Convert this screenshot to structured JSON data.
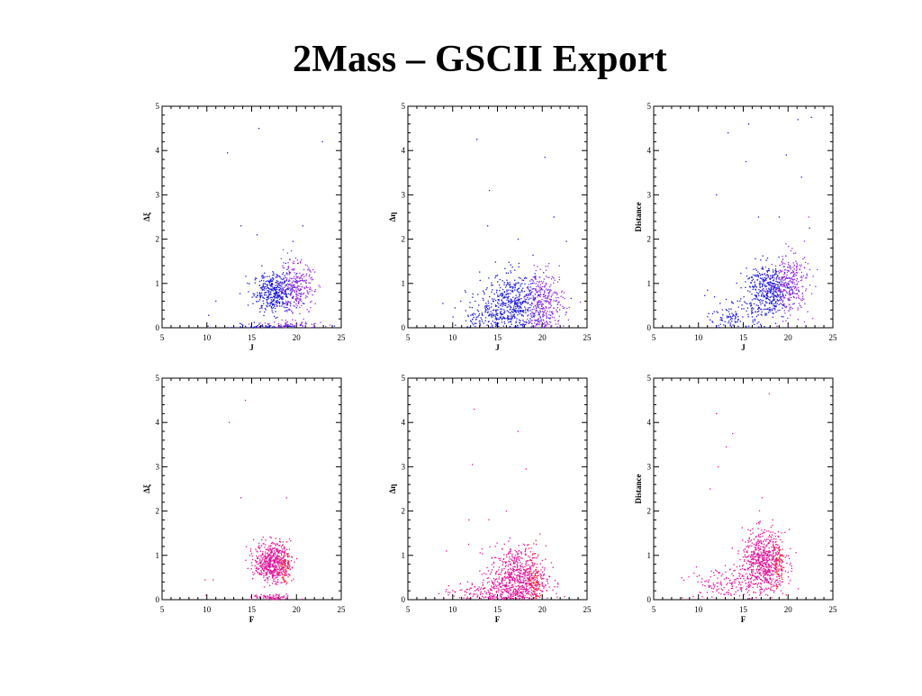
{
  "title": "2Mass – GSCII Export",
  "colors": {
    "blue": "#1a1ad6",
    "violet": "#9a2ee0",
    "magenta": "#e0149a",
    "pink": "#f04cc8",
    "red": "#ff2020"
  },
  "chart_data": [
    {
      "type": "scatter",
      "xlabel": "J",
      "ylabel": "Δξ",
      "xlim": [
        5,
        25
      ],
      "ylim": [
        0,
        5
      ],
      "xticks": [
        "5",
        "10",
        "15",
        "20",
        "25"
      ],
      "yticks": [
        "0",
        "1",
        "2",
        "3",
        "4",
        "5"
      ],
      "series": [
        {
          "color": "blue",
          "clusters": [
            {
              "cx": 17.6,
              "cy": 0.8,
              "sx": 1.2,
              "sy": 0.22,
              "n": 420
            },
            {
              "cx": 16.5,
              "cy": 0.03,
              "sx": 3.0,
              "sy": 0.03,
              "n": 70
            }
          ]
        },
        {
          "color": "violet",
          "clusters": [
            {
              "cx": 20.0,
              "cy": 0.9,
              "sx": 1.0,
              "sy": 0.3,
              "n": 260
            },
            {
              "cx": 19.5,
              "cy": 0.05,
              "sx": 2.0,
              "sy": 0.04,
              "n": 50
            }
          ]
        }
      ],
      "outliers": [
        {
          "x": 15.8,
          "y": 4.5
        },
        {
          "x": 12.3,
          "y": 3.95
        },
        {
          "x": 22.9,
          "y": 4.2
        },
        {
          "x": 13.8,
          "y": 2.3
        },
        {
          "x": 15.6,
          "y": 2.1
        },
        {
          "x": 20.7,
          "y": 2.3
        },
        {
          "x": 19.6,
          "y": 1.95
        },
        {
          "x": 11.0,
          "y": 0.6
        },
        {
          "x": 10.2,
          "y": 0.28
        }
      ]
    },
    {
      "type": "scatter",
      "xlabel": "J",
      "ylabel": "Δη",
      "xlim": [
        5,
        25
      ],
      "ylim": [
        0,
        5
      ],
      "xticks": [
        "5",
        "10",
        "15",
        "20",
        "25"
      ],
      "yticks": [
        "0",
        "1",
        "2",
        "3",
        "4",
        "5"
      ],
      "series": [
        {
          "color": "blue",
          "clusters": [
            {
              "cx": 16.8,
              "cy": 0.55,
              "sx": 1.8,
              "sy": 0.33,
              "n": 520
            },
            {
              "cx": 13.5,
              "cy": 0.2,
              "sx": 1.5,
              "sy": 0.15,
              "n": 80
            }
          ]
        },
        {
          "color": "violet",
          "clusters": [
            {
              "cx": 20.3,
              "cy": 0.55,
              "sx": 1.1,
              "sy": 0.35,
              "n": 300
            }
          ]
        }
      ],
      "outliers": [
        {
          "x": 12.7,
          "y": 4.25
        },
        {
          "x": 14.1,
          "y": 3.1
        },
        {
          "x": 20.3,
          "y": 3.85
        },
        {
          "x": 13.9,
          "y": 2.3
        },
        {
          "x": 21.3,
          "y": 2.5
        },
        {
          "x": 17.3,
          "y": 2.0
        },
        {
          "x": 22.7,
          "y": 1.95
        },
        {
          "x": 10.9,
          "y": 0.6
        },
        {
          "x": 8.9,
          "y": 0.55
        }
      ]
    },
    {
      "type": "scatter",
      "xlabel": "J",
      "ylabel": "Distance",
      "xlim": [
        5,
        25
      ],
      "ylim": [
        0,
        5
      ],
      "xticks": [
        "5",
        "10",
        "15",
        "20",
        "25"
      ],
      "yticks": [
        "0",
        "1",
        "2",
        "3",
        "4",
        "5"
      ],
      "series": [
        {
          "color": "blue",
          "clusters": [
            {
              "cx": 17.8,
              "cy": 0.85,
              "sx": 1.3,
              "sy": 0.3,
              "n": 440
            },
            {
              "cx": 14.0,
              "cy": 0.25,
              "sx": 1.4,
              "sy": 0.15,
              "n": 110
            }
          ]
        },
        {
          "color": "violet",
          "clusters": [
            {
              "cx": 20.2,
              "cy": 1.0,
              "sx": 1.1,
              "sy": 0.35,
              "n": 280
            }
          ]
        }
      ],
      "outliers": [
        {
          "x": 13.3,
          "y": 4.4
        },
        {
          "x": 15.6,
          "y": 4.6
        },
        {
          "x": 21.1,
          "y": 4.7
        },
        {
          "x": 22.6,
          "y": 4.75
        },
        {
          "x": 15.3,
          "y": 3.75
        },
        {
          "x": 19.8,
          "y": 3.9
        },
        {
          "x": 12.0,
          "y": 3.0
        },
        {
          "x": 21.5,
          "y": 3.4
        },
        {
          "x": 16.7,
          "y": 2.5
        },
        {
          "x": 19.0,
          "y": 2.5
        },
        {
          "x": 22.4,
          "y": 2.25
        },
        {
          "x": 11.0,
          "y": 0.85
        }
      ]
    },
    {
      "type": "scatter",
      "xlabel": "F",
      "ylabel": "Δξ",
      "xlim": [
        5,
        25
      ],
      "ylim": [
        0,
        5
      ],
      "xticks": [
        "5",
        "10",
        "15",
        "20",
        "25"
      ],
      "yticks": [
        "0",
        "1",
        "2",
        "3",
        "4",
        "5"
      ],
      "series": [
        {
          "color": "magenta",
          "clusters": [
            {
              "cx": 17.3,
              "cy": 0.85,
              "sx": 1.0,
              "sy": 0.22,
              "n": 560
            },
            {
              "cx": 17.3,
              "cy": 0.04,
              "sx": 1.1,
              "sy": 0.04,
              "n": 80
            }
          ]
        },
        {
          "color": "red",
          "clusters": [
            {
              "cx": 18.7,
              "cy": 0.7,
              "sx": 0.35,
              "sy": 0.25,
              "n": 60
            }
          ]
        }
      ],
      "outliers": [
        {
          "x": 12.5,
          "y": 4.0
        },
        {
          "x": 14.3,
          "y": 4.5
        },
        {
          "x": 13.8,
          "y": 2.3
        },
        {
          "x": 18.9,
          "y": 2.3
        },
        {
          "x": 14.4,
          "y": 1.2
        },
        {
          "x": 9.8,
          "y": 0.45
        },
        {
          "x": 10.7,
          "y": 0.45
        },
        {
          "x": 9.9,
          "y": 0.1
        }
      ]
    },
    {
      "type": "scatter",
      "xlabel": "F",
      "ylabel": "Δη",
      "xlim": [
        5,
        25
      ],
      "ylim": [
        0,
        5
      ],
      "xticks": [
        "5",
        "10",
        "15",
        "20",
        "25"
      ],
      "yticks": [
        "0",
        "1",
        "2",
        "3",
        "4",
        "5"
      ],
      "series": [
        {
          "color": "magenta",
          "clusters": [
            {
              "cx": 17.2,
              "cy": 0.45,
              "sx": 1.6,
              "sy": 0.38,
              "n": 720
            },
            {
              "cx": 13.0,
              "cy": 0.15,
              "sx": 2.0,
              "sy": 0.12,
              "n": 120
            }
          ]
        },
        {
          "color": "red",
          "clusters": [
            {
              "cx": 19.1,
              "cy": 0.5,
              "sx": 0.3,
              "sy": 0.35,
              "n": 70
            }
          ]
        }
      ],
      "outliers": [
        {
          "x": 12.4,
          "y": 4.3
        },
        {
          "x": 17.3,
          "y": 3.8
        },
        {
          "x": 12.2,
          "y": 3.05
        },
        {
          "x": 18.2,
          "y": 2.95
        },
        {
          "x": 11.8,
          "y": 1.8
        },
        {
          "x": 16.0,
          "y": 2.0
        },
        {
          "x": 9.3,
          "y": 1.1
        }
      ]
    },
    {
      "type": "scatter",
      "xlabel": "F",
      "ylabel": "Distance",
      "xlim": [
        5,
        25
      ],
      "ylim": [
        0,
        5
      ],
      "xticks": [
        "5",
        "10",
        "15",
        "20",
        "25"
      ],
      "yticks": [
        "0",
        "1",
        "2",
        "3",
        "4",
        "5"
      ],
      "series": [
        {
          "color": "magenta",
          "clusters": [
            {
              "cx": 17.3,
              "cy": 0.85,
              "sx": 1.2,
              "sy": 0.35,
              "n": 680
            },
            {
              "cx": 13.0,
              "cy": 0.35,
              "sx": 2.0,
              "sy": 0.2,
              "n": 140
            }
          ]
        },
        {
          "color": "red",
          "clusters": [
            {
              "cx": 18.9,
              "cy": 0.8,
              "sx": 0.35,
              "sy": 0.3,
              "n": 60
            }
          ]
        }
      ],
      "outliers": [
        {
          "x": 12.0,
          "y": 4.2
        },
        {
          "x": 13.8,
          "y": 3.75
        },
        {
          "x": 17.9,
          "y": 4.65
        },
        {
          "x": 12.2,
          "y": 3.0
        },
        {
          "x": 13.1,
          "y": 3.45
        },
        {
          "x": 17.1,
          "y": 2.3
        },
        {
          "x": 11.3,
          "y": 2.5
        },
        {
          "x": 9.5,
          "y": 0.6
        }
      ]
    }
  ]
}
